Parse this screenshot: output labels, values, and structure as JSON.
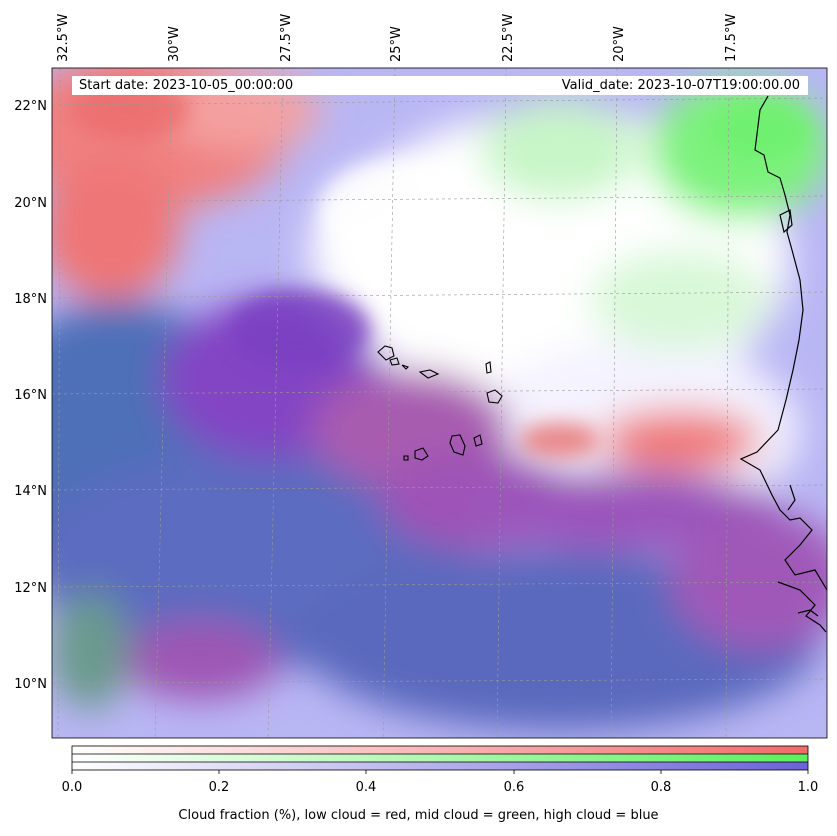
{
  "map": {
    "start_date_label": "Start date: 2023-10-05_00:00:00",
    "valid_date_label": "Valid_date: 2023-10-07T19:00:00.00",
    "lon_labels": [
      "32.5°W",
      "30°W",
      "27.5°W",
      "25°W",
      "22.5°W",
      "20°W",
      "17.5°W"
    ],
    "lat_labels": [
      "22°N",
      "20°N",
      "18°N",
      "16°N",
      "14°N",
      "12°N",
      "10°N"
    ],
    "gridlines": true,
    "coastline_color": "#000000"
  },
  "colorbar": {
    "tick_labels": [
      "0.0",
      "0.2",
      "0.4",
      "0.6",
      "0.8",
      "1.0"
    ],
    "range": [
      0.0,
      1.0
    ],
    "rows": [
      {
        "name": "low cloud",
        "color": "#ff6b6b"
      },
      {
        "name": "mid cloud",
        "color": "#66ff66"
      },
      {
        "name": "high cloud",
        "color": "#6666dd"
      }
    ],
    "caption": "Cloud fraction (%), low cloud = red, mid cloud = green, high cloud = blue"
  }
}
